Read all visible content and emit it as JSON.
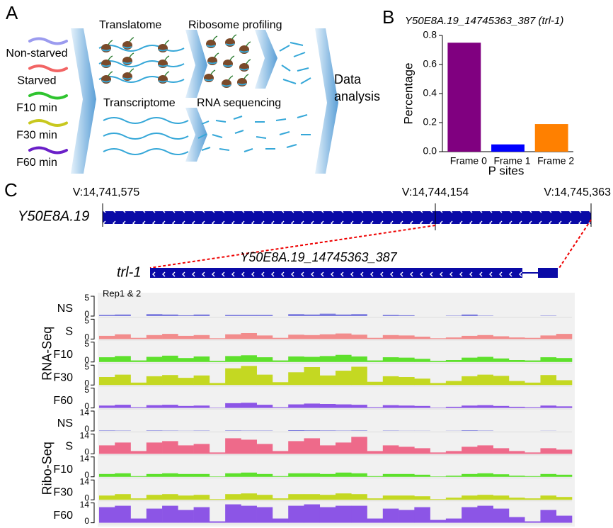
{
  "panel_a": {
    "label": "A",
    "conditions": [
      {
        "name": "Non-starved",
        "color": "#9b9bef"
      },
      {
        "name": "Starved",
        "color": "#f26464"
      },
      {
        "name": "F10 min",
        "color": "#2fc42f"
      },
      {
        "name": "F30 min",
        "color": "#c8c81e"
      },
      {
        "name": "F60 min",
        "color": "#6a1fc8"
      }
    ],
    "steps": {
      "translatome": "Translatome",
      "ribosome_profiling": "Ribosome profiling",
      "transcriptome": "Transcriptome",
      "rna_sequencing": "RNA sequencing",
      "data_analysis": "Data analysis"
    }
  },
  "panel_b": {
    "label": "B"
  },
  "chart_data": {
    "type": "bar",
    "title": "Y50E8A.19_14745363_387 (trl-1)",
    "x_label": "P sites",
    "y_label": "Percentage",
    "categories": [
      "Frame 0",
      "Frame 1",
      "Frame 2"
    ],
    "values": [
      0.75,
      0.05,
      0.19
    ],
    "colors": [
      "#800080",
      "#0000ff",
      "#ff8000"
    ],
    "ylim": [
      0,
      0.8
    ],
    "yticks": [
      {
        "value": 0,
        "label": "0.0"
      },
      0.2,
      0.4,
      0.6,
      0.8
    ]
  },
  "panel_c": {
    "label": "C",
    "gene": "Y50E8A.19",
    "coords": [
      "V:14,741,575",
      "V:14,744,154",
      "V:14,745,363"
    ],
    "transcript": "Y50E8A.19_14745363_387",
    "short_name": "trl-1",
    "replicate_note": "Rep1 & 2",
    "groups": [
      {
        "name": "RNA-Seq",
        "ylim": [
          0,
          5
        ],
        "tracks": [
          {
            "label": "NS",
            "color": "#7c7cde",
            "values": [
              0.3,
              0.4,
              0,
              0.5,
              0.4,
              0.2,
              0.4,
              0,
              0.3,
              0.3,
              0.3,
              0,
              0.5,
              0.4,
              0.6,
              0.4,
              0.5,
              0,
              0.3,
              0.2,
              0,
              0,
              0.1,
              0.4,
              0.1,
              0,
              0,
              0,
              0.1,
              0
            ]
          },
          {
            "label": "S",
            "color": "#f28c8c",
            "values": [
              0.8,
              1.2,
              0.3,
              1.0,
              1.3,
              0.8,
              1.0,
              0.2,
              1.2,
              1.5,
              0.9,
              0.3,
              1.1,
              1.0,
              1.2,
              1.4,
              1.1,
              0.3,
              1.0,
              0.9,
              0.6,
              0.2,
              0.4,
              0.8,
              1.0,
              0.7,
              0.4,
              0.3,
              0.9,
              1.3
            ]
          },
          {
            "label": "F10",
            "color": "#5ee02c",
            "values": [
              1.2,
              1.5,
              0.4,
              1.3,
              1.6,
              1.0,
              1.4,
              0.3,
              1.5,
              1.7,
              1.2,
              0.4,
              1.4,
              1.3,
              1.5,
              1.8,
              1.4,
              0.4,
              1.2,
              1.1,
              0.8,
              0.3,
              0.5,
              1.1,
              1.3,
              0.9,
              0.5,
              0.4,
              1.2,
              1.0
            ]
          },
          {
            "label": "F30",
            "color": "#c4d822",
            "values": [
              2.0,
              2.6,
              0.6,
              2.2,
              2.5,
              1.8,
              2.4,
              0.5,
              4.2,
              4.8,
              2.6,
              0.7,
              3.2,
              4.5,
              2.4,
              3.6,
              4.6,
              0.8,
              2.2,
              2.0,
              1.6,
              0.5,
              1.0,
              2.2,
              2.6,
              2.3,
              1.0,
              0.6,
              2.5,
              1.2
            ]
          },
          {
            "label": "F60",
            "color": "#8c55e6",
            "values": [
              0.6,
              0.8,
              0.2,
              0.7,
              0.8,
              0.5,
              0.6,
              0.1,
              1.2,
              1.3,
              0.8,
              0.2,
              0.9,
              1.1,
              1.0,
              0.9,
              0.8,
              0.2,
              0.7,
              0.6,
              0.5,
              0.1,
              0.3,
              0.6,
              0.7,
              0.5,
              0.3,
              0.2,
              0.6,
              0.4
            ]
          }
        ]
      },
      {
        "name": "Ribo-Seq",
        "ylim": [
          0,
          14
        ],
        "tracks": [
          {
            "label": "NS",
            "color": "#7c7cde",
            "values": [
              0.3,
              0.2,
              0,
              0.3,
              0.2,
              0.1,
              0.2,
              0,
              0.3,
              0.2,
              0.2,
              0,
              0.5,
              0.4,
              0.3,
              0.2,
              0.3,
              0,
              0.2,
              0.1,
              0.1,
              0,
              0.1,
              0.4,
              0.2,
              0,
              0,
              0,
              0.1,
              0
            ]
          },
          {
            "label": "S",
            "color": "#ee6a8a",
            "values": [
              6,
              8,
              2,
              8,
              9,
              6,
              7,
              1,
              11,
              10,
              7,
              2,
              9,
              11,
              6,
              8,
              12,
              2,
              6,
              5,
              4,
              1,
              2,
              5,
              6,
              4,
              2,
              1,
              4,
              3
            ]
          },
          {
            "label": "F10",
            "color": "#5ee02c",
            "values": [
              2,
              2.5,
              0.5,
              2,
              2.5,
              2,
              2,
              0.3,
              2.5,
              3,
              2,
              0.5,
              2.5,
              2.5,
              2,
              3,
              2.5,
              0.5,
              2,
              2,
              1.5,
              0.3,
              0.8,
              2,
              2.5,
              1.8,
              0.8,
              0.5,
              2,
              1.5
            ]
          },
          {
            "label": "F30",
            "color": "#c4d822",
            "values": [
              3,
              4,
              1,
              3.5,
              4,
              3,
              3.5,
              0.5,
              4,
              4.5,
              3.5,
              1,
              4,
              4,
              3.5,
              4.5,
              4,
              1,
              3,
              3,
              2.5,
              0.5,
              1.5,
              3,
              3.5,
              3,
              1.5,
              1,
              3,
              2
            ]
          },
          {
            "label": "F60",
            "color": "#8c55e6",
            "values": [
              11,
              12,
              3,
              10,
              12,
              9,
              11,
              1,
              13,
              12,
              11,
              3,
              12,
              13,
              11,
              12,
              12,
              3,
              10,
              9,
              11,
              2,
              3,
              11,
              12,
              10,
              4,
              1,
              9,
              5
            ]
          }
        ]
      }
    ]
  }
}
